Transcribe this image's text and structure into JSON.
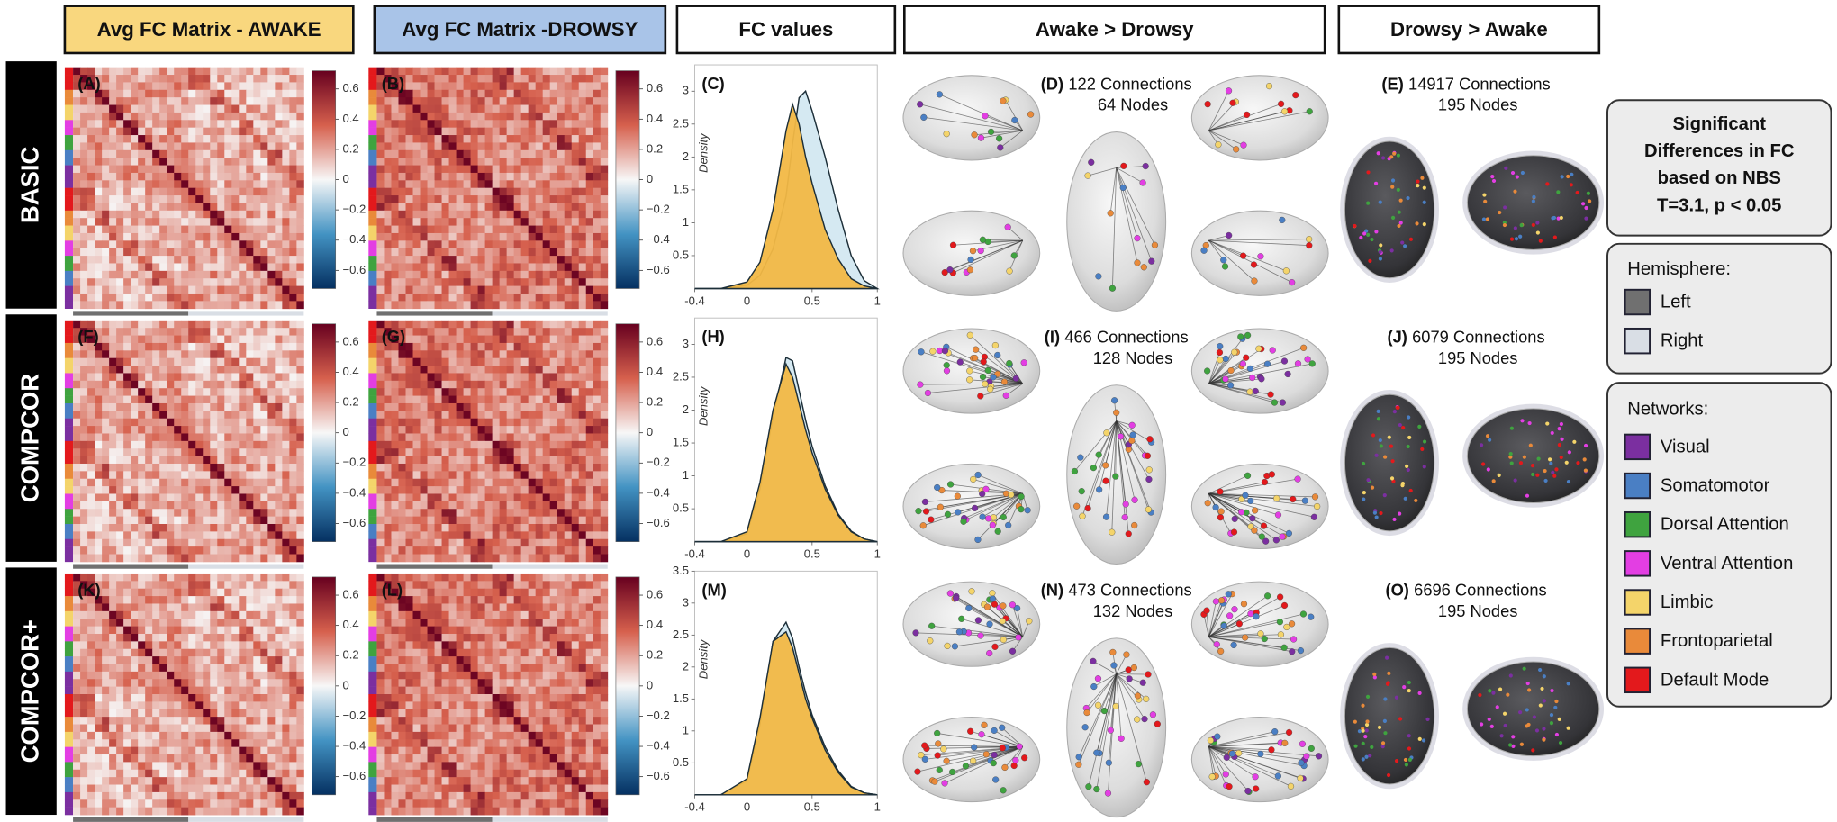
{
  "columns": [
    "Avg FC Matrix - AWAKE",
    "Avg FC Matrix -DROWSY",
    "FC values",
    "Awake > Drowsy",
    "Drowsy > Awake"
  ],
  "colorbar": {
    "lim": [
      -0.72,
      0.72
    ],
    "ticks": [
      0.6,
      0.4,
      0.2,
      0,
      {
        "value": -0.2,
        "label": "−0.2"
      },
      {
        "value": -0.4,
        "label": "−0.4"
      },
      {
        "value": -0.6,
        "label": "−0.6"
      }
    ]
  },
  "rows": [
    {
      "label": "BASIC",
      "panels": [
        "(A)",
        "(B)",
        "(C)",
        "(D)",
        "(E)"
      ],
      "awake_drowsy": [
        "122 Connections",
        "64 Nodes"
      ],
      "drowsy_awake": [
        "14917 Connections",
        "195 Nodes"
      ],
      "density": {
        "type": "area",
        "ylabel": "Density",
        "x": [
          -0.4,
          -0.2,
          0,
          0.1,
          0.2,
          0.3,
          0.35,
          0.4,
          0.45,
          0.5,
          0.6,
          0.7,
          0.8,
          0.9,
          1
        ],
        "xlim": [
          -0.4,
          1
        ],
        "xticks": [
          -0.4,
          0,
          0.5,
          1
        ],
        "ylim": [
          0,
          3.4
        ],
        "yticks": [
          0.5,
          1,
          1.5,
          2,
          2.5,
          3
        ],
        "series": [
          {
            "color": "#d3e8f1",
            "values": [
              0,
              0,
              0.05,
              0.2,
              0.6,
              1.4,
              2.2,
              2.9,
              3.0,
              2.7,
              2.0,
              1.2,
              0.5,
              0.12,
              0
            ]
          },
          {
            "color": "#f2b845",
            "values": [
              0,
              0,
              0.1,
              0.4,
              1.2,
              2.4,
              2.8,
              2.5,
              2.0,
              1.6,
              0.9,
              0.45,
              0.15,
              0.04,
              0
            ]
          }
        ]
      }
    },
    {
      "label": "COMPCOR",
      "panels": [
        "(F)",
        "(G)",
        "(H)",
        "(I)",
        "(J)"
      ],
      "awake_drowsy": [
        "466 Connections",
        "128 Nodes"
      ],
      "drowsy_awake": [
        "6079 Connections",
        "195 Nodes"
      ],
      "density": {
        "type": "area",
        "ylabel": "Density",
        "x": [
          -0.4,
          -0.2,
          0,
          0.1,
          0.2,
          0.3,
          0.35,
          0.4,
          0.45,
          0.5,
          0.6,
          0.7,
          0.8,
          0.9,
          1
        ],
        "xlim": [
          -0.4,
          1
        ],
        "xticks": [
          -0.4,
          0,
          0.5,
          1
        ],
        "ylim": [
          0,
          3.4
        ],
        "yticks": [
          0.5,
          1,
          1.5,
          2,
          2.5,
          3
        ],
        "series": [
          {
            "color": "#d3e8f1",
            "values": [
              0,
              0,
              0.12,
              0.8,
              1.9,
              2.8,
              2.75,
              2.3,
              1.85,
              1.45,
              0.85,
              0.42,
              0.16,
              0.04,
              0
            ]
          },
          {
            "color": "#f2b845",
            "values": [
              0,
              0,
              0.15,
              0.9,
              2.0,
              2.7,
              2.5,
              2.1,
              1.7,
              1.35,
              0.8,
              0.4,
              0.15,
              0.04,
              0
            ]
          }
        ]
      }
    },
    {
      "label": "COMPCOR+",
      "panels": [
        "(K)",
        "(L)",
        "(M)",
        "(N)",
        "(O)"
      ],
      "awake_drowsy": [
        "473 Connections",
        "132 Nodes"
      ],
      "drowsy_awake": [
        "6696 Connections",
        "195 Nodes"
      ],
      "density": {
        "type": "area",
        "ylabel": "Density",
        "x": [
          -0.4,
          -0.2,
          0,
          0.1,
          0.2,
          0.3,
          0.35,
          0.4,
          0.45,
          0.5,
          0.6,
          0.7,
          0.8,
          0.9,
          1
        ],
        "xlim": [
          -0.4,
          1
        ],
        "xticks": [
          -0.4,
          0,
          0.5,
          1
        ],
        "ylim": [
          0,
          3.5
        ],
        "yticks": [
          0.5,
          1,
          1.5,
          2,
          2.5,
          3,
          3.5
        ],
        "series": [
          {
            "color": "#d3e8f1",
            "values": [
              0,
              0,
              0.22,
              1.1,
              2.4,
              2.7,
              2.45,
              2.0,
              1.6,
              1.25,
              0.75,
              0.38,
              0.13,
              0.03,
              0
            ]
          },
          {
            "color": "#f2b845",
            "values": [
              0,
              0,
              0.25,
              1.2,
              2.4,
              2.55,
              2.3,
              1.9,
              1.5,
              1.2,
              0.7,
              0.35,
              0.12,
              0.03,
              0
            ]
          }
        ]
      }
    }
  ],
  "legend": {
    "title_lines": [
      "Significant",
      "Differences in FC",
      "based on NBS",
      "T=3.1, p < 0.05"
    ],
    "hemisphere_title": "Hemisphere:",
    "hemispheres": [
      {
        "label": "Left",
        "color": "#707070"
      },
      {
        "label": "Right",
        "color": "#d9dee5"
      }
    ],
    "networks_title": "Networks:",
    "networks": [
      {
        "label": "Visual",
        "color": "#7b2fa0"
      },
      {
        "label": "Somatomotor",
        "color": "#4a7fc4"
      },
      {
        "label": "Dorsal Attention",
        "color": "#3fa33f"
      },
      {
        "label": "Ventral Attention",
        "color": "#e33ee3"
      },
      {
        "label": "Limbic",
        "color": "#f4d46a"
      },
      {
        "label": "Frontoparietal",
        "color": "#e98a3a"
      },
      {
        "label": "Default Mode",
        "color": "#e3191c"
      }
    ]
  }
}
